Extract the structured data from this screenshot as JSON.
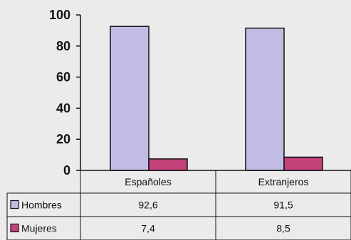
{
  "chart_data": {
    "type": "bar",
    "categories": [
      "Españoles",
      "Extranjeros"
    ],
    "series": [
      {
        "name": "Hombres",
        "values": [
          92.6,
          91.5
        ],
        "labels": [
          "92,6",
          "91,5"
        ],
        "color": "#c0bce4"
      },
      {
        "name": "Mujeres",
        "values": [
          7.4,
          8.5
        ],
        "labels": [
          "7,4",
          "8,5"
        ],
        "color": "#c4437a"
      }
    ],
    "ylim": [
      0,
      100
    ],
    "yticks": [
      0,
      20,
      40,
      60,
      80,
      100
    ],
    "grid": false,
    "legend": "data-table"
  }
}
